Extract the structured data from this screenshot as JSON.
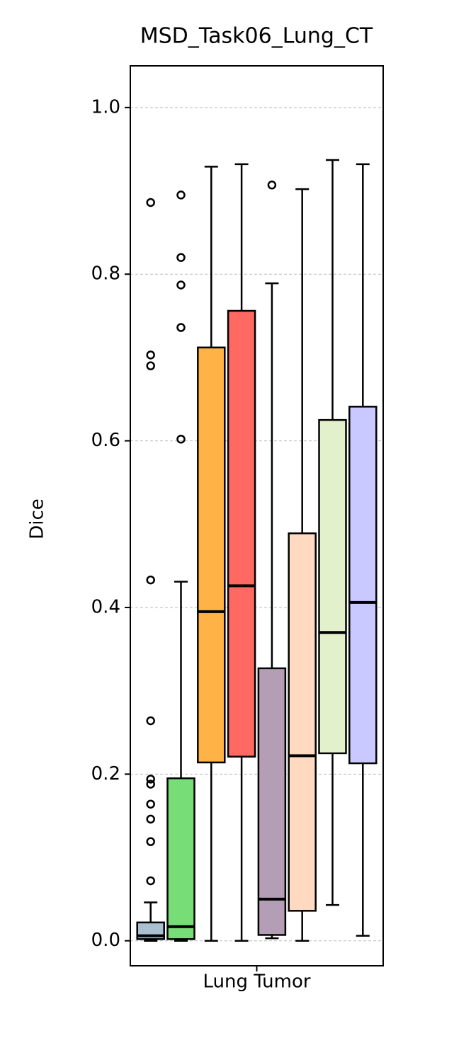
{
  "chart_data": {
    "type": "box",
    "title": "MSD_Task06_Lung_CT",
    "ylabel": "Dice",
    "categories": [
      "Lung Tumor"
    ],
    "ylim": [
      -0.03,
      1.05
    ],
    "yticks": [
      {
        "value": 0,
        "label": "0.0"
      },
      0.2,
      0.4,
      0.6,
      0.8,
      {
        "value": 1,
        "label": "1.0"
      }
    ],
    "grid": true,
    "series": [
      {
        "color": "#a8c0d0",
        "whislo": 0.0,
        "q1": 0.002,
        "median": 0.006,
        "q3": 0.022,
        "whishi": 0.046,
        "fliers": [
          0.886,
          0.703,
          0.69,
          0.433,
          0.264,
          0.194,
          0.188,
          0.164,
          0.146,
          0.119,
          0.072
        ]
      },
      {
        "color": "#77dd77",
        "whislo": 0.0,
        "q1": 0.002,
        "median": 0.017,
        "q3": 0.195,
        "whishi": 0.431,
        "fliers": [
          0.895,
          0.82,
          0.787,
          0.736,
          0.602
        ]
      },
      {
        "color": "#ffb347",
        "whislo": 0.0,
        "q1": 0.214,
        "median": 0.395,
        "q3": 0.712,
        "whishi": 0.929,
        "fliers": []
      },
      {
        "color": "#ff6961",
        "whislo": 0.0,
        "q1": 0.221,
        "median": 0.426,
        "q3": 0.756,
        "whishi": 0.932,
        "fliers": []
      },
      {
        "color": "#b39eb5",
        "whislo": 0.003,
        "q1": 0.007,
        "median": 0.05,
        "q3": 0.327,
        "whishi": 0.789,
        "fliers": [
          0.907
        ]
      },
      {
        "color": "#ffdac1",
        "whislo": 0.0,
        "q1": 0.036,
        "median": 0.222,
        "q3": 0.489,
        "whishi": 0.902,
        "fliers": []
      },
      {
        "color": "#e2f0cb",
        "whislo": 0.043,
        "q1": 0.225,
        "median": 0.37,
        "q3": 0.625,
        "whishi": 0.937,
        "fliers": []
      },
      {
        "color": "#c9c9ff",
        "whislo": 0.006,
        "q1": 0.213,
        "median": 0.406,
        "q3": 0.641,
        "whishi": 0.932,
        "fliers": []
      }
    ]
  }
}
